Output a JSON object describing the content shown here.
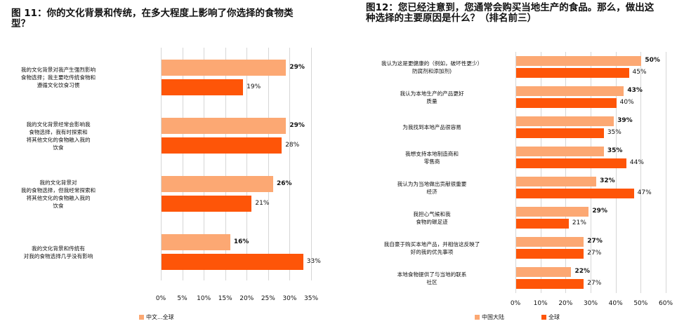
{
  "colors": {
    "china": "#fca873",
    "global": "#fe5508",
    "grid": "#d6d6d6"
  },
  "chart_data": [
    {
      "type": "bar",
      "orientation": "horizontal",
      "title": "图 11：你的文化背景和传统，在多大程度上影响了你选择的食物类型？",
      "categories": [
        "我的文化背景对我产生强烈影响食物选择；我主要吃传统食物和遵循文化饮食习惯",
        "我的文化背景经常会影响我食物选择，我有时探索和将其他文化的食物融入我的饮食",
        "我的文化背景对我的食物选择，但我经常探索和将其他文化的食物融入我的饮食",
        "我的文化背景和传统有对我的食物选择几乎没有影响"
      ],
      "series": [
        {
          "name": "中文…",
          "values": [
            29,
            29,
            26,
            16
          ]
        },
        {
          "name": "全球",
          "values": [
            19,
            28,
            21,
            33
          ]
        }
      ],
      "xlabel": "",
      "ylabel": "",
      "xlim": [
        0,
        35
      ],
      "xticks": [
        "0%",
        "5%",
        "10%",
        "15%",
        "20%",
        "25%",
        "30%",
        "35%"
      ],
      "grid": true,
      "legend_position": "bottom",
      "legend_text": "中文...全球"
    },
    {
      "type": "bar",
      "orientation": "horizontal",
      "title": "图12：您已经注意到，您通常会购买当地生产的食品。那么，做出这种选择的主要原因是什么？（排名前三）",
      "categories": [
        "我认为这是更健康的（例如，破坏性更少）防腐剂和添加剂)",
        "我认为本地生产的产品更好质量",
        "为我找到本地产品很容易",
        "我想支持本地制造商和零售商",
        "我认为为当地做出贡献很重要经济",
        "我担心气候和我食物的碳足迹",
        "我自豪于购买本地产品，并相信这反映了好的我的优先事项",
        "本地食物提供了与当地的联系社区"
      ],
      "series": [
        {
          "name": "中国大陆",
          "values": [
            50,
            43,
            39,
            35,
            32,
            29,
            27,
            22
          ]
        },
        {
          "name": "全球",
          "values": [
            45,
            40,
            35,
            44,
            47,
            21,
            27,
            27
          ]
        }
      ],
      "xlabel": "",
      "ylabel": "",
      "xlim": [
        0,
        60
      ],
      "xticks": [
        "0%",
        "10%",
        "20%",
        "30%",
        "40%",
        "50%",
        "60%"
      ],
      "grid": true,
      "legend_position": "bottom"
    }
  ],
  "fig11": {
    "title_line1": "图 11：你的文化背景和传统，在多大程度上影响了你选择的食物类",
    "title_line2": "型？",
    "categories": [
      {
        "lines": [
          "我的文化背景对我产生强烈影响",
          "食物选择；我主要吃传统食物和",
          "遵循文化饮食习惯"
        ]
      },
      {
        "lines": [
          "我的文化背景经常会影响我",
          "食物选择，我有时探索和",
          "将其他文化的食物融入我的",
          "饮食"
        ]
      },
      {
        "lines": [
          "我的文化背景对",
          "我的食物选择，但我经常探索和",
          "将其他文化的食物融入我的",
          "饮食"
        ]
      },
      {
        "lines": [
          "我的文化背景和传统有",
          "对我的食物选择几乎没有影响"
        ]
      }
    ],
    "china_labels": [
      "29%",
      "29%",
      "26%",
      "16%"
    ],
    "global_labels": [
      "19%",
      "28%",
      "21%",
      "33%"
    ],
    "ticks": [
      "0%",
      "5%",
      "10%",
      "15%",
      "20%",
      "25%",
      "30%",
      "35%"
    ],
    "legend": "中文...全球"
  },
  "fig12": {
    "title_line1": "图12：您已经注意到，您通常会购买当地生产的食品。那么，做出这",
    "title_line2": "种选择的主要原因是什么？（排名前三）",
    "categories": [
      {
        "lines": [
          "我认为这是更健康的（例如，破坏性更少）",
          "防腐剂和添加剂)"
        ]
      },
      {
        "lines": [
          "我认为本地生产的产品更好",
          "质量"
        ]
      },
      {
        "lines": [
          "为我找到本地产品很容易"
        ]
      },
      {
        "lines": [
          "我想支持本地制造商和",
          "零售商"
        ]
      },
      {
        "lines": [
          "我认为为当地做出贡献很重要",
          "经济"
        ]
      },
      {
        "lines": [
          "我担心气候和我",
          "食物的碳足迹"
        ]
      },
      {
        "lines": [
          "我自豪于购买本地产品，并相信这反映了",
          "好的我的优先事项"
        ]
      },
      {
        "lines": [
          "本地食物提供了与当地的联系",
          "社区"
        ]
      }
    ],
    "china_labels": [
      "50%",
      "43%",
      "39%",
      "35%",
      "32%",
      "29%",
      "27%",
      "22%"
    ],
    "global_labels": [
      "45%",
      "40%",
      "35%",
      "44%",
      "47%",
      "21%",
      "27%",
      "27%"
    ],
    "ticks": [
      "0%",
      "10%",
      "20%",
      "30%",
      "40%",
      "50%",
      "60%"
    ],
    "legend_china": "中国大陆",
    "legend_global": "全球"
  }
}
